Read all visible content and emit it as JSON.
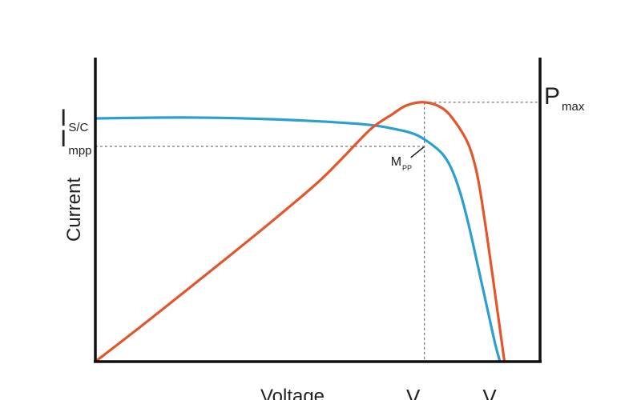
{
  "chart_data": {
    "type": "line",
    "title": "",
    "xlabel": "Voltage",
    "ylabel": "Current",
    "xlim": [
      0,
      1
    ],
    "ylim": [
      0,
      1
    ],
    "grid": false,
    "series": [
      {
        "color": "#2a9fd0",
        "points": [
          [
            0,
            0.8
          ],
          [
            0.2,
            0.803
          ],
          [
            0.4,
            0.797
          ],
          [
            0.6,
            0.781
          ],
          [
            0.68,
            0.763
          ],
          [
            0.72,
            0.747
          ],
          [
            0.75,
            0.721
          ],
          [
            0.78,
            0.684
          ],
          [
            0.8,
            0.637
          ],
          [
            0.82,
            0.558
          ],
          [
            0.84,
            0.447
          ],
          [
            0.86,
            0.316
          ],
          [
            0.88,
            0.184
          ],
          [
            0.9,
            0.053
          ],
          [
            0.91,
            0.0
          ]
        ]
      },
      {
        "color": "#e2562a",
        "points": [
          [
            0,
            0.0
          ],
          [
            0.1,
            0.113
          ],
          [
            0.2,
            0.229
          ],
          [
            0.3,
            0.346
          ],
          [
            0.4,
            0.465
          ],
          [
            0.5,
            0.589
          ],
          [
            0.56,
            0.676
          ],
          [
            0.62,
            0.766
          ],
          [
            0.67,
            0.816
          ],
          [
            0.7,
            0.843
          ],
          [
            0.74,
            0.853
          ],
          [
            0.78,
            0.834
          ],
          [
            0.81,
            0.787
          ],
          [
            0.84,
            0.711
          ],
          [
            0.86,
            0.605
          ],
          [
            0.88,
            0.421
          ],
          [
            0.9,
            0.211
          ],
          [
            0.92,
            0.0
          ]
        ]
      }
    ],
    "annotations": {
      "isc": {
        "main": "I",
        "sub": "S/C",
        "y": 0.8
      },
      "impp": {
        "main": "I",
        "sub": "mpp",
        "y": 0.708
      },
      "pmax": {
        "main": "P",
        "sub": "max",
        "y": 0.853
      },
      "mpp": {
        "main": "M",
        "sub": "PP",
        "x": 0.74,
        "y": 0.708
      },
      "vmpp": {
        "main": "V",
        "x": 0.74
      },
      "voc": {
        "main": "V",
        "x": 0.91
      }
    }
  }
}
